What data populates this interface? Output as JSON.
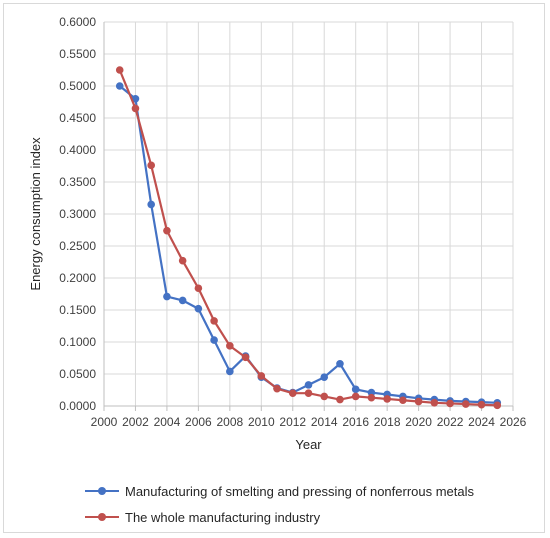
{
  "chart_data": {
    "type": "line",
    "xlabel": "Year",
    "ylabel": "Energy consumption index",
    "xlim": [
      2000,
      2026
    ],
    "ylim": [
      0,
      0.6
    ],
    "x_ticks": [
      "2000",
      "2002",
      "2004",
      "2006",
      "2008",
      "2010",
      "2012",
      "2014",
      "2016",
      "2018",
      "2020",
      "2022",
      "2024",
      "2026"
    ],
    "y_ticks": [
      "0.0000",
      "0.0500",
      "0.1000",
      "0.1500",
      "0.2000",
      "0.2500",
      "0.3000",
      "0.3500",
      "0.4000",
      "0.4500",
      "0.5000",
      "0.5500",
      "0.6000"
    ],
    "grid": "horizontal",
    "legend_position": "bottom",
    "x": [
      2001,
      2002,
      2003,
      2004,
      2005,
      2006,
      2007,
      2008,
      2009,
      2010,
      2011,
      2012,
      2013,
      2014,
      2015,
      2016,
      2017,
      2018,
      2019,
      2020,
      2021,
      2022,
      2023,
      2024,
      2025
    ],
    "series": [
      {
        "name": "Manufacturing of smelting and pressing of nonferrous metals",
        "color": "#4472c4",
        "values": [
          0.5,
          0.48,
          0.315,
          0.171,
          0.165,
          0.152,
          0.103,
          0.054,
          0.078,
          0.045,
          0.028,
          0.021,
          0.033,
          0.045,
          0.066,
          0.026,
          0.021,
          0.018,
          0.015,
          0.012,
          0.01,
          0.008,
          0.007,
          0.006,
          0.005
        ]
      },
      {
        "name": "The whole manufacturing industry",
        "color": "#c0504d",
        "values": [
          0.525,
          0.465,
          0.376,
          0.274,
          0.227,
          0.184,
          0.133,
          0.094,
          0.076,
          0.047,
          0.027,
          0.02,
          0.02,
          0.015,
          0.01,
          0.015,
          0.013,
          0.011,
          0.009,
          0.007,
          0.005,
          0.004,
          0.003,
          0.002,
          0.001
        ]
      }
    ]
  }
}
